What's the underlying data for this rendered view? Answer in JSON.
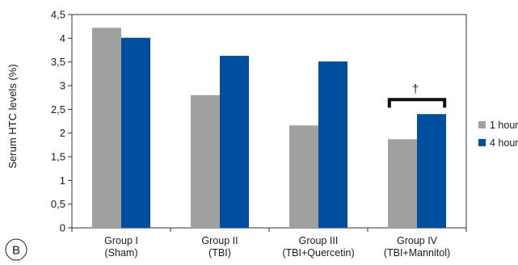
{
  "chart_data": {
    "type": "bar",
    "categories": [
      [
        "Group I",
        "(Sham)"
      ],
      [
        "Group II",
        "(TBI)"
      ],
      [
        "Group III",
        "(TBI+Quercetin)"
      ],
      [
        "Group IV",
        "(TBI+Mannitol)"
      ]
    ],
    "series": [
      {
        "name": "1 hour",
        "color": "#a0a0a0",
        "values": [
          4.22,
          2.8,
          2.16,
          1.87
        ]
      },
      {
        "name": "4 hour",
        "color": "#004f9f",
        "values": [
          4.01,
          3.63,
          3.51,
          2.4
        ]
      }
    ],
    "ylabel": "Serum HTC levels (%)",
    "ylim": [
      0,
      4.5
    ],
    "yticks": [
      "0",
      "0,5",
      "1",
      "1,5",
      "2",
      "2,5",
      "3",
      "3,5",
      "4",
      "4,5"
    ],
    "grid": false,
    "legend_position": "right",
    "annotation": {
      "category_index": 3,
      "symbol": "†"
    },
    "panel_label": "B"
  }
}
